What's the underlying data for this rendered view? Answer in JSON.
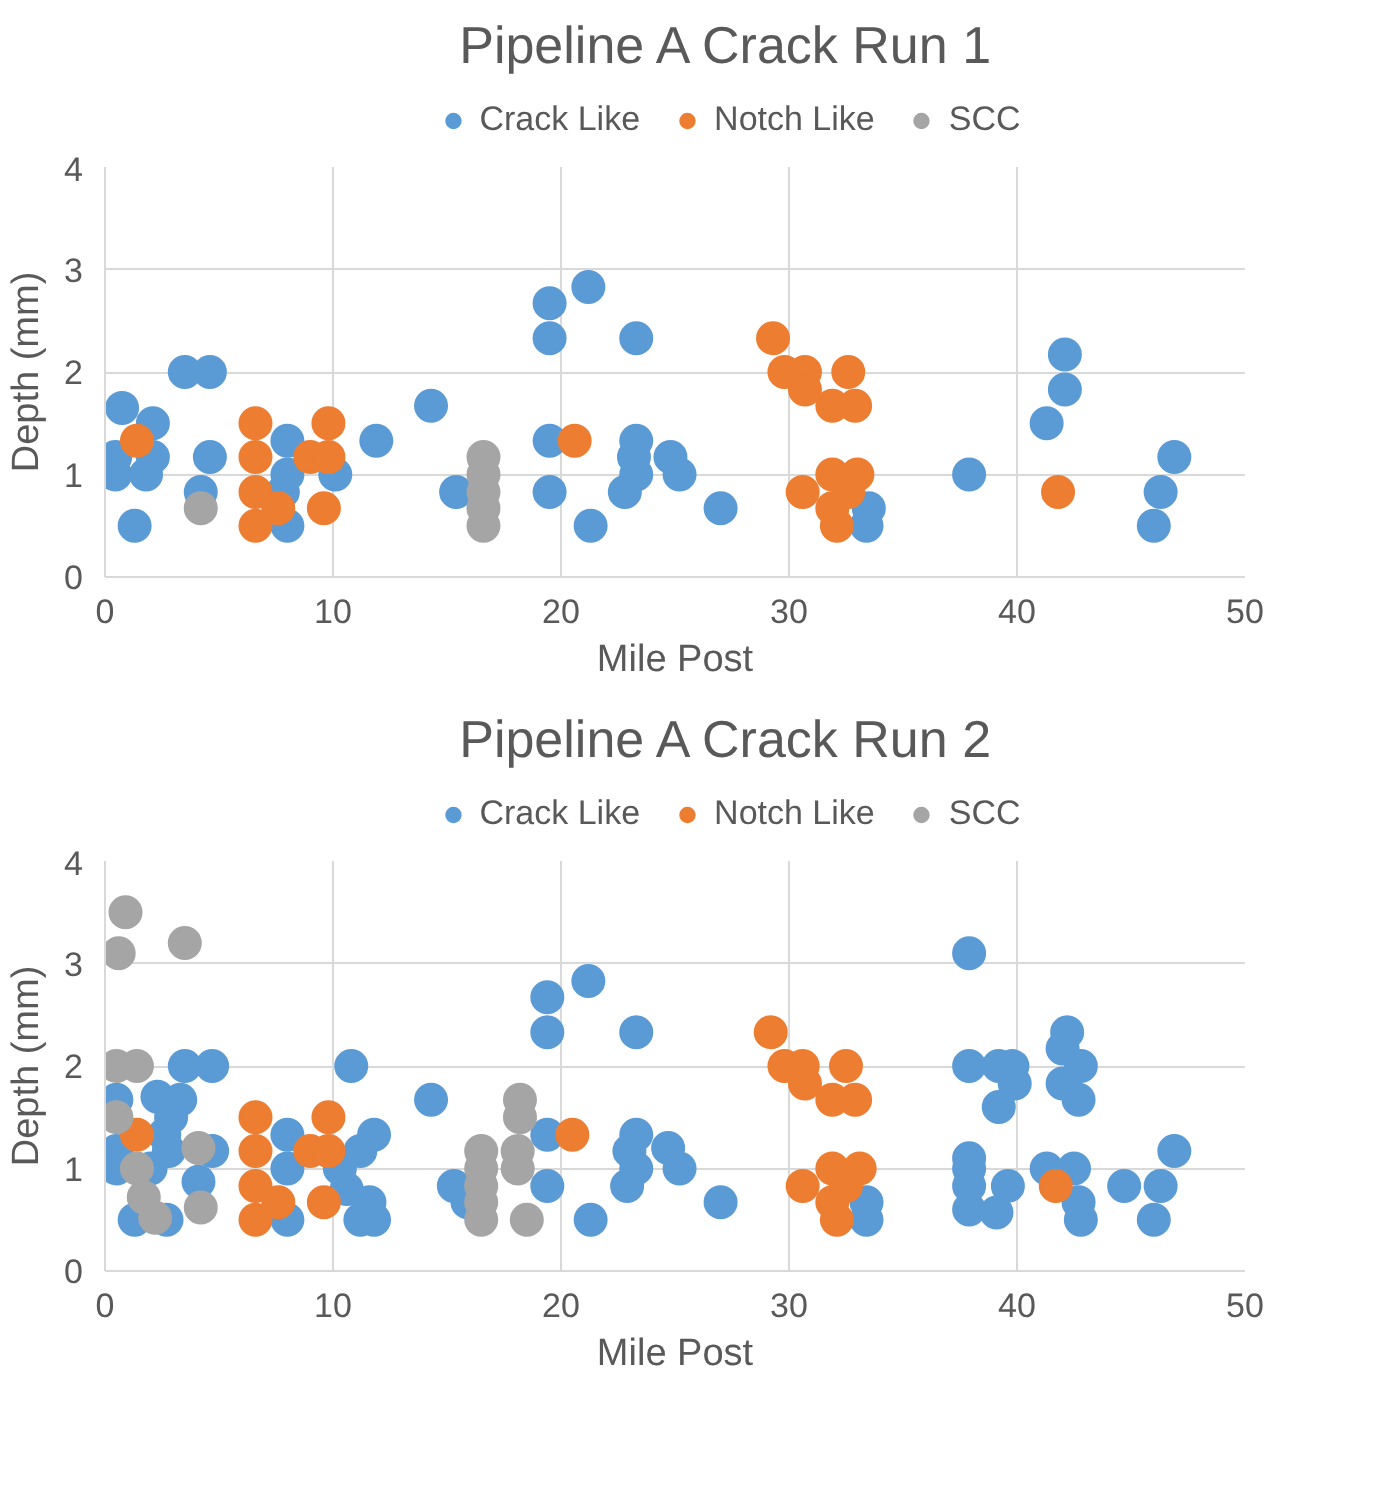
{
  "chart_data": [
    {
      "type": "scatter",
      "title": "Pipeline A Crack Run 1",
      "xlabel": "Mile Post",
      "ylabel": "Depth (mm)",
      "xlim": [
        0,
        50
      ],
      "ylim": [
        0,
        4
      ],
      "xticks": [
        0,
        10,
        20,
        30,
        40,
        50
      ],
      "yticks": [
        0,
        1,
        2,
        3,
        4
      ],
      "grid": true,
      "legend": "top",
      "marker": "circle",
      "series": [
        {
          "name": "Crack Like",
          "color": "#5b9bd5",
          "x": [
            0.75,
            2.1,
            0.45,
            0.45,
            1.8,
            2.1,
            1.3,
            3.5,
            4.6,
            4.6,
            4.2,
            8.0,
            8.0,
            8.0,
            7.8,
            10.1,
            11.9,
            14.3,
            15.4,
            19.5,
            21.2,
            19.5,
            23.3,
            19.5,
            19.5,
            21.3,
            23.3,
            23.2,
            23.3,
            22.8,
            24.8,
            25.2,
            27.0,
            33.5,
            33.4,
            37.9,
            42.1,
            42.1,
            41.3,
            46.9,
            46.3,
            46.0
          ],
          "values": [
            1.65,
            1.5,
            1.17,
            1.0,
            1.0,
            1.17,
            0.5,
            2.0,
            2.0,
            1.17,
            0.83,
            1.33,
            1.0,
            0.5,
            0.83,
            1.0,
            1.33,
            1.67,
            0.83,
            2.67,
            2.83,
            2.33,
            2.33,
            1.33,
            0.83,
            0.5,
            1.33,
            1.17,
            1.0,
            0.83,
            1.17,
            1.0,
            0.67,
            0.67,
            0.5,
            1.0,
            2.17,
            1.83,
            1.5,
            1.17,
            0.83,
            0.5
          ]
        },
        {
          "name": "Notch Like",
          "color": "#ed7d31",
          "x": [
            1.4,
            6.6,
            6.6,
            6.6,
            6.6,
            7.6,
            9.8,
            9.0,
            9.8,
            9.6,
            20.6,
            29.3,
            29.8,
            30.7,
            30.7,
            32.6,
            31.9,
            32.9,
            30.6,
            31.9,
            33.0,
            32.6,
            31.9,
            32.1,
            41.8
          ],
          "values": [
            1.33,
            1.5,
            1.17,
            0.83,
            0.5,
            0.67,
            1.5,
            1.17,
            1.17,
            0.67,
            1.33,
            2.33,
            2.0,
            2.0,
            1.83,
            2.0,
            1.67,
            1.67,
            0.83,
            1.0,
            1.0,
            0.83,
            0.67,
            0.5,
            0.83
          ]
        },
        {
          "name": "SCC",
          "color": "#a5a5a5",
          "x": [
            4.2,
            16.6,
            16.6,
            16.6,
            16.6,
            16.6
          ],
          "values": [
            0.67,
            1.17,
            1.0,
            0.83,
            0.67,
            0.5
          ]
        }
      ]
    },
    {
      "type": "scatter",
      "title": "Pipeline A Crack Run 2",
      "xlabel": "Mile Post",
      "ylabel": "Depth (mm)",
      "xlim": [
        0,
        50
      ],
      "ylim": [
        0,
        4
      ],
      "xticks": [
        0,
        10,
        20,
        30,
        40,
        50
      ],
      "yticks": [
        0,
        1,
        2,
        3,
        4
      ],
      "grid": true,
      "legend": "top",
      "marker": "circle",
      "series": [
        {
          "name": "Crack Like",
          "color": "#5b9bd5",
          "x": [
            0.5,
            0.5,
            0.5,
            2.3,
            3.3,
            2.9,
            2.6,
            2.8,
            2.0,
            3.5,
            4.7,
            4.7,
            4.1,
            1.3,
            2.7,
            8.0,
            8.0,
            8.0,
            10.8,
            11.8,
            11.2,
            10.3,
            10.6,
            11.2,
            11.8,
            11.6,
            14.3,
            15.3,
            15.9,
            19.4,
            21.2,
            19.4,
            23.3,
            19.4,
            19.4,
            21.3,
            23.3,
            23.0,
            23.3,
            22.9,
            24.7,
            25.2,
            27.0,
            33.4,
            33.4,
            37.9,
            37.9,
            39.2,
            39.8,
            39.9,
            39.2,
            37.9,
            37.9,
            37.9,
            37.9,
            39.1,
            39.6,
            41.3,
            42.2,
            42.0,
            42.8,
            42.0,
            42.7,
            42.5,
            42.7,
            42.8,
            44.7,
            46.9,
            46.3,
            46.0
          ],
          "values": [
            1.67,
            1.17,
            1.0,
            1.7,
            1.67,
            1.5,
            1.33,
            1.17,
            1.0,
            2.0,
            2.0,
            1.17,
            0.87,
            0.5,
            0.5,
            1.33,
            1.0,
            0.5,
            2.0,
            1.33,
            1.17,
            1.0,
            0.8,
            0.5,
            0.5,
            0.67,
            1.67,
            0.83,
            0.67,
            2.67,
            2.83,
            2.33,
            2.33,
            1.33,
            0.83,
            0.5,
            1.33,
            1.17,
            1.0,
            0.83,
            1.2,
            1.0,
            0.67,
            0.67,
            0.5,
            3.1,
            2.0,
            2.0,
            2.0,
            1.83,
            1.6,
            1.1,
            1.0,
            0.83,
            0.6,
            0.57,
            0.83,
            1.0,
            2.33,
            2.17,
            2.0,
            1.83,
            1.67,
            1.0,
            0.67,
            0.5,
            0.83,
            1.17,
            0.83,
            0.5
          ]
        },
        {
          "name": "Notch Like",
          "color": "#ed7d31",
          "x": [
            1.4,
            6.6,
            6.6,
            6.6,
            6.6,
            7.6,
            9.8,
            9.0,
            9.8,
            9.6,
            20.5,
            29.2,
            29.8,
            30.6,
            30.7,
            32.5,
            31.9,
            32.9,
            30.6,
            31.9,
            33.1,
            32.5,
            31.9,
            32.1,
            41.7
          ],
          "values": [
            1.33,
            1.5,
            1.17,
            0.83,
            0.5,
            0.67,
            1.5,
            1.17,
            1.17,
            0.67,
            1.33,
            2.33,
            2.0,
            2.0,
            1.83,
            2.0,
            1.67,
            1.67,
            0.83,
            1.0,
            1.0,
            0.83,
            0.67,
            0.5,
            0.83
          ]
        },
        {
          "name": "SCC",
          "color": "#a5a5a5",
          "x": [
            0.9,
            0.6,
            3.5,
            0.5,
            1.4,
            0.5,
            1.4,
            1.7,
            2.2,
            4.1,
            4.2,
            16.5,
            16.5,
            16.5,
            16.5,
            16.5,
            18.2,
            18.2,
            18.1,
            18.1,
            18.5
          ],
          "values": [
            3.5,
            3.1,
            3.2,
            2.0,
            2.0,
            1.5,
            1.0,
            0.72,
            0.52,
            1.2,
            0.62,
            1.17,
            1.0,
            0.83,
            0.67,
            0.5,
            1.67,
            1.5,
            1.17,
            1.0,
            0.5
          ]
        }
      ]
    }
  ]
}
